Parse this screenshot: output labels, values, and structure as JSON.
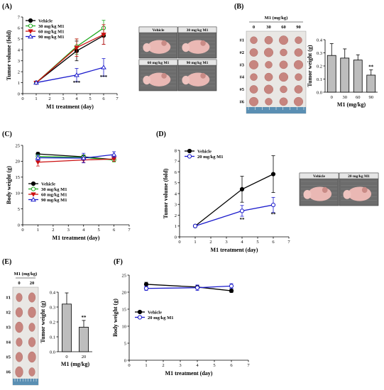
{
  "panels": {
    "A": "(A)",
    "B": "(B)",
    "C": "(C)",
    "D": "(D)",
    "E": "(E)",
    "F": "(F)"
  },
  "colors": {
    "vehicle": "#000000",
    "m1_30": "#22aa22",
    "m1_60": "#cc1111",
    "m1_90": "#1a1acc",
    "m1_20": "#1a1acc",
    "bar": "#bdbdbd"
  },
  "photos": {
    "A": [
      "Vehicle",
      "30 mg/kg M1",
      "60 mg/kg M1",
      "90 mg/kg M1"
    ],
    "D": [
      "Vehicle",
      "20 mg/kg M1"
    ]
  },
  "tumor_grid_B": {
    "header": "M1 (mg/kg)",
    "cols": [
      "0",
      "30",
      "60",
      "90"
    ],
    "rows": [
      "#1",
      "#2",
      "#3",
      "#4",
      "#5",
      "#6"
    ]
  },
  "tumor_grid_E": {
    "header": "M1 (mg/kg)",
    "cols": [
      "0",
      "20"
    ],
    "rows": [
      "#1",
      "#2",
      "#3",
      "#4",
      "#5",
      "#6"
    ]
  },
  "chart_data": [
    {
      "id": "A",
      "type": "line",
      "xlabel": "M1 treatment (day)",
      "ylabel": "Tumor volume (fold)",
      "xlim": [
        0,
        7
      ],
      "ylim": [
        0,
        7
      ],
      "xticks": [
        0,
        1,
        2,
        3,
        4,
        5,
        6,
        7
      ],
      "yticks": [
        0,
        1,
        2,
        3,
        4,
        5,
        6,
        7
      ],
      "legend": "top-left",
      "x": [
        1,
        4,
        6
      ],
      "series": [
        {
          "name": "Vehicle",
          "color_key": "vehicle",
          "marker": "filled",
          "values": [
            1,
            3.9,
            5.3
          ],
          "err": [
            0,
            0.9,
            0.8
          ]
        },
        {
          "name": "30 mg/kg M1",
          "color_key": "m1_30",
          "marker": "open",
          "values": [
            1,
            4.3,
            6.0
          ],
          "err": [
            0,
            0.7,
            0.7
          ]
        },
        {
          "name": "60 mg/kg M1",
          "color_key": "m1_60",
          "marker": "tri-down",
          "values": [
            1,
            4.2,
            5.4
          ],
          "err": [
            0,
            0.8,
            0.9
          ]
        },
        {
          "name": "90 mg/kg M1",
          "color_key": "m1_90",
          "marker": "tri-up-open",
          "values": [
            1,
            1.7,
            2.4
          ],
          "err": [
            0,
            0.6,
            0.8
          ]
        }
      ],
      "annotations": [
        {
          "x": 4,
          "y": 0.85,
          "text": "***"
        },
        {
          "x": 6,
          "y": 1.35,
          "text": "***"
        }
      ]
    },
    {
      "id": "B",
      "type": "bar",
      "xlabel": "M1 (mg/kg)",
      "ylabel": "Tumor weight (g)",
      "categories": [
        "0",
        "30",
        "60",
        "90"
      ],
      "values": [
        0.28,
        0.26,
        0.245,
        0.13
      ],
      "err": [
        0.09,
        0.07,
        0.04,
        0.04
      ],
      "ylim": [
        0,
        0.4
      ],
      "yticks": [
        "0.0",
        "0.1",
        "0.2",
        "0.3",
        "0.4"
      ],
      "annotations": [
        {
          "index": 3,
          "text": "**"
        }
      ]
    },
    {
      "id": "C",
      "type": "line",
      "xlabel": "M1 treatment (day)",
      "ylabel": "Body weight (g)",
      "xlim": [
        0,
        7
      ],
      "ylim": [
        0,
        25
      ],
      "xticks": [
        0,
        1,
        2,
        3,
        4,
        5,
        6,
        7
      ],
      "yticks": [
        0,
        5,
        10,
        15,
        20,
        25
      ],
      "legend": "bottom-left",
      "x": [
        1,
        4,
        6
      ],
      "series": [
        {
          "name": "Vehicle",
          "color_key": "vehicle",
          "marker": "filled",
          "values": [
            22.3,
            21.4,
            20.5
          ],
          "err": [
            0.5,
            0.6,
            0.5
          ]
        },
        {
          "name": "30 mg/kg M1",
          "color_key": "m1_30",
          "marker": "open",
          "values": [
            21.5,
            21.2,
            20.4
          ],
          "err": [
            0.6,
            0.7,
            0.6
          ]
        },
        {
          "name": "60 mg/kg M1",
          "color_key": "m1_60",
          "marker": "tri-down",
          "values": [
            19.7,
            20.4,
            20.7
          ],
          "err": [
            1.2,
            0.8,
            0.7
          ]
        },
        {
          "name": "90 mg/kg M1",
          "color_key": "m1_90",
          "marker": "tri-up-open",
          "values": [
            21.1,
            21.0,
            22.1
          ],
          "err": [
            0.8,
            1.5,
            0.9
          ]
        }
      ]
    },
    {
      "id": "D",
      "type": "line",
      "xlabel": "M1 treatment (day)",
      "ylabel": "Tumor volume (fold)",
      "xlim": [
        0,
        7
      ],
      "ylim": [
        0,
        8
      ],
      "xticks": [
        0,
        1,
        2,
        3,
        4,
        5,
        6,
        7
      ],
      "yticks": [
        0,
        1,
        2,
        3,
        4,
        5,
        6,
        7,
        8
      ],
      "legend": "top-left",
      "x": [
        1,
        4,
        6
      ],
      "series": [
        {
          "name": "Vehicle",
          "color_key": "vehicle",
          "marker": "filled",
          "values": [
            1,
            4.4,
            5.8
          ],
          "err": [
            0,
            1.2,
            1.7
          ]
        },
        {
          "name": "20 mg/kg M1",
          "color_key": "m1_20",
          "marker": "open",
          "values": [
            1,
            2.4,
            2.95
          ],
          "err": [
            0,
            0.5,
            0.7
          ]
        }
      ],
      "annotations": [
        {
          "x": 4,
          "y": 1.45,
          "text": "**"
        },
        {
          "x": 6,
          "y": 1.95,
          "text": "**"
        }
      ]
    },
    {
      "id": "E",
      "type": "bar",
      "xlabel": "M1 (mg/kg)",
      "ylabel": "Tumor weight (g)",
      "categories": [
        "0",
        "20"
      ],
      "values": [
        0.32,
        0.165
      ],
      "err": [
        0.075,
        0.045
      ],
      "ylim": [
        0,
        0.4
      ],
      "yticks": [
        "0.0",
        "0.1",
        "0.2",
        "0.3",
        "0.4"
      ],
      "annotations": [
        {
          "index": 1,
          "text": "**"
        }
      ]
    },
    {
      "id": "F",
      "type": "line",
      "xlabel": "M1 treatment (day)",
      "ylabel": "Body weight (g)",
      "xlim": [
        0,
        7
      ],
      "ylim": [
        0,
        25
      ],
      "xticks": [
        0,
        1,
        2,
        3,
        4,
        5,
        6,
        7
      ],
      "yticks": [
        0,
        5,
        10,
        15,
        20,
        25
      ],
      "legend": "middle-left",
      "x": [
        1,
        4,
        6
      ],
      "series": [
        {
          "name": "Vehicle",
          "color_key": "vehicle",
          "marker": "filled",
          "values": [
            22.3,
            21.5,
            20.4
          ],
          "err": [
            0.6,
            0.6,
            0.5
          ]
        },
        {
          "name": "20 mg/kg M1",
          "color_key": "m1_20",
          "marker": "open",
          "values": [
            21.1,
            21.3,
            21.8
          ],
          "err": [
            0.6,
            0.8,
            0.7
          ]
        }
      ]
    }
  ]
}
